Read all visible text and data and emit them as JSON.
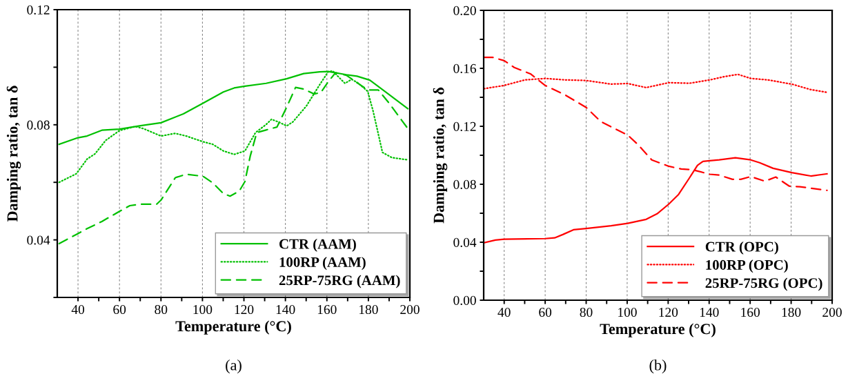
{
  "chart_data": [
    {
      "type": "line",
      "xlabel": "Temperature (°C)",
      "ylabel": "Damping ratio, tan δ",
      "annotations": [
        "(a)"
      ],
      "xlim": [
        30,
        200
      ],
      "xticks": [
        40,
        {
          "value": 50,
          "label": null
        },
        60,
        {
          "value": 70,
          "label": null
        },
        80,
        {
          "value": 90,
          "label": null
        },
        100,
        {
          "value": 110,
          "label": null
        },
        120,
        {
          "value": 130,
          "label": null
        },
        140,
        {
          "value": 150,
          "label": null
        },
        160,
        {
          "value": 170,
          "label": null
        },
        180,
        {
          "value": 190,
          "label": null
        },
        200
      ],
      "ylim": [
        0.02,
        0.12
      ],
      "yticks": [
        {
          "value": 0.02,
          "label": null
        },
        0.04,
        {
          "value": 0.06,
          "label": null
        },
        0.08,
        {
          "value": 0.1,
          "label": null
        },
        0.12
      ],
      "grid": "x",
      "legend": "bottom right",
      "series": [
        {
          "name": "CTR (AAM)",
          "color": "#00c000",
          "line_style": "solid",
          "x": [
            30.9,
            40,
            44.4,
            51.5,
            60,
            70.2,
            80,
            90.8,
            100.3,
            110.1,
            115.3,
            120.5,
            130.7,
            140.6,
            148.8,
            156.5,
            160.6,
            169.4,
            174.5,
            180.7,
            188.7,
            199
          ],
          "values": [
            0.0732,
            0.0755,
            0.0761,
            0.0781,
            0.0785,
            0.0797,
            0.0807,
            0.0838,
            0.0875,
            0.0914,
            0.0928,
            0.0934,
            0.0944,
            0.096,
            0.0978,
            0.0984,
            0.0985,
            0.0974,
            0.0969,
            0.0955,
            0.0912,
            0.0856
          ]
        },
        {
          "name": "100RP (AAM)",
          "color": "#00c000",
          "line_style": "dotted",
          "x": [
            30.9,
            39.2,
            44.4,
            48.2,
            53.4,
            60,
            67.6,
            71.4,
            80,
            86.9,
            92.1,
            100.3,
            105,
            110.1,
            115.3,
            120.5,
            125.6,
            130.7,
            133.3,
            137.2,
            140.6,
            143.6,
            150.1,
            156.5,
            160.6,
            162.9,
            165.5,
            168.7,
            172,
            175.2,
            179.7,
            182.3,
            186.8,
            191.3,
            199
          ],
          "values": [
            0.06,
            0.063,
            0.0681,
            0.0699,
            0.0746,
            0.078,
            0.0794,
            0.0787,
            0.0761,
            0.077,
            0.0761,
            0.0741,
            0.0732,
            0.0709,
            0.0697,
            0.0709,
            0.0773,
            0.0801,
            0.0819,
            0.0808,
            0.0796,
            0.081,
            0.0865,
            0.0939,
            0.0984,
            0.0987,
            0.0967,
            0.0944,
            0.0958,
            0.0944,
            0.0916,
            0.0847,
            0.0704,
            0.0686,
            0.0678
          ]
        },
        {
          "name": "25RP-75RG (AAM)",
          "color": "#00c000",
          "line_style": "dashed",
          "x": [
            30.9,
            40,
            44.4,
            51.5,
            60,
            65,
            70.2,
            77.9,
            80,
            86.9,
            92.1,
            100.3,
            105,
            110.1,
            113.3,
            117.8,
            120.5,
            123,
            126.2,
            130.7,
            135.9,
            140.6,
            144.9,
            148.8,
            153.9,
            157.1,
            160.6,
            164.2,
            169.4,
            175.8,
            179.7,
            184.8,
            190,
            199
          ],
          "values": [
            0.0387,
            0.0422,
            0.0439,
            0.0464,
            0.0499,
            0.0519,
            0.0524,
            0.0524,
            0.0538,
            0.0616,
            0.0628,
            0.0621,
            0.0598,
            0.0561,
            0.0552,
            0.057,
            0.0603,
            0.069,
            0.0773,
            0.0782,
            0.0792,
            0.0861,
            0.093,
            0.0924,
            0.0907,
            0.0912,
            0.0949,
            0.0981,
            0.0972,
            0.094,
            0.0921,
            0.0921,
            0.0875,
            0.0787
          ]
        }
      ]
    },
    {
      "type": "line",
      "xlabel": "Temperature (°C)",
      "ylabel": "Damping ratio, tan δ",
      "annotations": [
        "(b)"
      ],
      "xlim": [
        30,
        200
      ],
      "xticks": [
        40,
        {
          "value": 50,
          "label": null
        },
        60,
        {
          "value": 70,
          "label": null
        },
        80,
        {
          "value": 90,
          "label": null
        },
        100,
        {
          "value": 110,
          "label": null
        },
        120,
        {
          "value": 130,
          "label": null
        },
        140,
        {
          "value": 150,
          "label": null
        },
        160,
        {
          "value": 170,
          "label": null
        },
        180,
        {
          "value": 190,
          "label": null
        },
        200
      ],
      "ylim": [
        0,
        0.2
      ],
      "yticks": [
        {
          "value": 0.0,
          "label": "0.00"
        },
        {
          "value": 0.02,
          "label": null
        },
        0.04,
        {
          "value": 0.06,
          "label": null
        },
        0.08,
        {
          "value": 0.1,
          "label": null
        },
        0.12,
        {
          "value": 0.14,
          "label": null
        },
        0.16,
        {
          "value": 0.18,
          "label": null
        },
        {
          "value": 0.2,
          "label": "0.20"
        }
      ],
      "grid": "x",
      "legend": "bottom right",
      "series": [
        {
          "name": "CTR (OPC)",
          "color": "#ff0000",
          "line_style": "solid",
          "x": [
            30.1,
            35.7,
            40,
            60,
            64.6,
            68.6,
            73.8,
            80,
            92.2,
            100.3,
            109.3,
            114.6,
            120.3,
            125.1,
            130.4,
            134.3,
            137,
            140.3,
            144.9,
            152.8,
            160.3,
            164.6,
            171.2,
            180.3,
            189.6,
            197.5
          ],
          "values": [
            0.0396,
            0.0415,
            0.0421,
            0.0425,
            0.043,
            0.0453,
            0.0486,
            0.0495,
            0.0514,
            0.053,
            0.0558,
            0.0596,
            0.0663,
            0.073,
            0.0844,
            0.093,
            0.0958,
            0.0962,
            0.0968,
            0.0983,
            0.0968,
            0.0949,
            0.091,
            0.088,
            0.0857,
            0.0872
          ]
        },
        {
          "name": "100RP (OPC)",
          "color": "#ff0000",
          "line_style": "dotted",
          "x": [
            30.1,
            40,
            50.1,
            60,
            69.9,
            80,
            92.2,
            100.3,
            109.3,
            120.3,
            130.4,
            140.3,
            147.5,
            154.1,
            160.3,
            168.6,
            180.3,
            189.6,
            197.5
          ],
          "values": [
            0.1459,
            0.1482,
            0.152,
            0.153,
            0.152,
            0.1516,
            0.1491,
            0.1495,
            0.1467,
            0.1501,
            0.1497,
            0.152,
            0.1543,
            0.1558,
            0.153,
            0.152,
            0.1491,
            0.1453,
            0.1434
          ]
        },
        {
          "name": "25RP-75RG (OPC)",
          "color": "#ff0000",
          "line_style": "dashed",
          "x": [
            30.1,
            34.3,
            40,
            44.9,
            52.8,
            60,
            69.9,
            80,
            87,
            92.2,
            100.3,
            105.4,
            112,
            120.3,
            126.4,
            131.7,
            140.3,
            144.9,
            151.4,
            155.4,
            160.3,
            167.2,
            172.5,
            179.1,
            184.3,
            197.5
          ],
          "values": [
            0.1676,
            0.1676,
            0.1653,
            0.1606,
            0.1562,
            0.1482,
            0.1415,
            0.133,
            0.1234,
            0.1196,
            0.1139,
            0.1072,
            0.0968,
            0.0924,
            0.0905,
            0.0901,
            0.0869,
            0.0863,
            0.0834,
            0.0834,
            0.0853,
            0.0821,
            0.085,
            0.0787,
            0.0783,
            0.0758
          ]
        }
      ]
    }
  ]
}
